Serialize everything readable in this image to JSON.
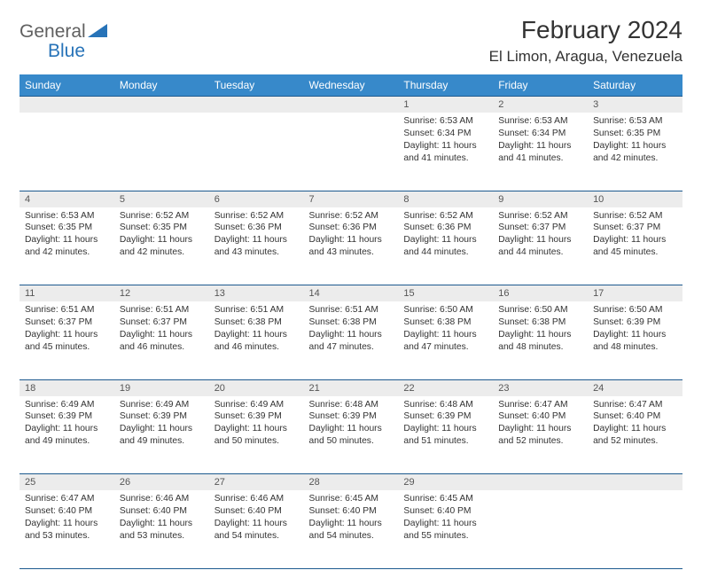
{
  "brand": {
    "word1": "General",
    "word2": "Blue",
    "logo_color": "#2773b8"
  },
  "title": "February 2024",
  "location": "El Limon, Aragua, Venezuela",
  "colors": {
    "header_bg": "#3789ca",
    "header_text": "#ffffff",
    "daynum_bg": "#ececec",
    "rule": "#1d5a8f",
    "body_text": "#333333"
  },
  "typography": {
    "title_fontsize": 28,
    "location_fontsize": 17,
    "weekday_fontsize": 12,
    "cell_fontsize": 10.3
  },
  "weekdays": [
    "Sunday",
    "Monday",
    "Tuesday",
    "Wednesday",
    "Thursday",
    "Friday",
    "Saturday"
  ],
  "weeks": [
    [
      null,
      null,
      null,
      null,
      {
        "n": "1",
        "sunrise": "6:53 AM",
        "sunset": "6:34 PM",
        "daylight": "11 hours and 41 minutes."
      },
      {
        "n": "2",
        "sunrise": "6:53 AM",
        "sunset": "6:34 PM",
        "daylight": "11 hours and 41 minutes."
      },
      {
        "n": "3",
        "sunrise": "6:53 AM",
        "sunset": "6:35 PM",
        "daylight": "11 hours and 42 minutes."
      }
    ],
    [
      {
        "n": "4",
        "sunrise": "6:53 AM",
        "sunset": "6:35 PM",
        "daylight": "11 hours and 42 minutes."
      },
      {
        "n": "5",
        "sunrise": "6:52 AM",
        "sunset": "6:35 PM",
        "daylight": "11 hours and 42 minutes."
      },
      {
        "n": "6",
        "sunrise": "6:52 AM",
        "sunset": "6:36 PM",
        "daylight": "11 hours and 43 minutes."
      },
      {
        "n": "7",
        "sunrise": "6:52 AM",
        "sunset": "6:36 PM",
        "daylight": "11 hours and 43 minutes."
      },
      {
        "n": "8",
        "sunrise": "6:52 AM",
        "sunset": "6:36 PM",
        "daylight": "11 hours and 44 minutes."
      },
      {
        "n": "9",
        "sunrise": "6:52 AM",
        "sunset": "6:37 PM",
        "daylight": "11 hours and 44 minutes."
      },
      {
        "n": "10",
        "sunrise": "6:52 AM",
        "sunset": "6:37 PM",
        "daylight": "11 hours and 45 minutes."
      }
    ],
    [
      {
        "n": "11",
        "sunrise": "6:51 AM",
        "sunset": "6:37 PM",
        "daylight": "11 hours and 45 minutes."
      },
      {
        "n": "12",
        "sunrise": "6:51 AM",
        "sunset": "6:37 PM",
        "daylight": "11 hours and 46 minutes."
      },
      {
        "n": "13",
        "sunrise": "6:51 AM",
        "sunset": "6:38 PM",
        "daylight": "11 hours and 46 minutes."
      },
      {
        "n": "14",
        "sunrise": "6:51 AM",
        "sunset": "6:38 PM",
        "daylight": "11 hours and 47 minutes."
      },
      {
        "n": "15",
        "sunrise": "6:50 AM",
        "sunset": "6:38 PM",
        "daylight": "11 hours and 47 minutes."
      },
      {
        "n": "16",
        "sunrise": "6:50 AM",
        "sunset": "6:38 PM",
        "daylight": "11 hours and 48 minutes."
      },
      {
        "n": "17",
        "sunrise": "6:50 AM",
        "sunset": "6:39 PM",
        "daylight": "11 hours and 48 minutes."
      }
    ],
    [
      {
        "n": "18",
        "sunrise": "6:49 AM",
        "sunset": "6:39 PM",
        "daylight": "11 hours and 49 minutes."
      },
      {
        "n": "19",
        "sunrise": "6:49 AM",
        "sunset": "6:39 PM",
        "daylight": "11 hours and 49 minutes."
      },
      {
        "n": "20",
        "sunrise": "6:49 AM",
        "sunset": "6:39 PM",
        "daylight": "11 hours and 50 minutes."
      },
      {
        "n": "21",
        "sunrise": "6:48 AM",
        "sunset": "6:39 PM",
        "daylight": "11 hours and 50 minutes."
      },
      {
        "n": "22",
        "sunrise": "6:48 AM",
        "sunset": "6:39 PM",
        "daylight": "11 hours and 51 minutes."
      },
      {
        "n": "23",
        "sunrise": "6:47 AM",
        "sunset": "6:40 PM",
        "daylight": "11 hours and 52 minutes."
      },
      {
        "n": "24",
        "sunrise": "6:47 AM",
        "sunset": "6:40 PM",
        "daylight": "11 hours and 52 minutes."
      }
    ],
    [
      {
        "n": "25",
        "sunrise": "6:47 AM",
        "sunset": "6:40 PM",
        "daylight": "11 hours and 53 minutes."
      },
      {
        "n": "26",
        "sunrise": "6:46 AM",
        "sunset": "6:40 PM",
        "daylight": "11 hours and 53 minutes."
      },
      {
        "n": "27",
        "sunrise": "6:46 AM",
        "sunset": "6:40 PM",
        "daylight": "11 hours and 54 minutes."
      },
      {
        "n": "28",
        "sunrise": "6:45 AM",
        "sunset": "6:40 PM",
        "daylight": "11 hours and 54 minutes."
      },
      {
        "n": "29",
        "sunrise": "6:45 AM",
        "sunset": "6:40 PM",
        "daylight": "11 hours and 55 minutes."
      },
      null,
      null
    ]
  ],
  "labels": {
    "sunrise": "Sunrise:",
    "sunset": "Sunset:",
    "daylight": "Daylight:"
  }
}
